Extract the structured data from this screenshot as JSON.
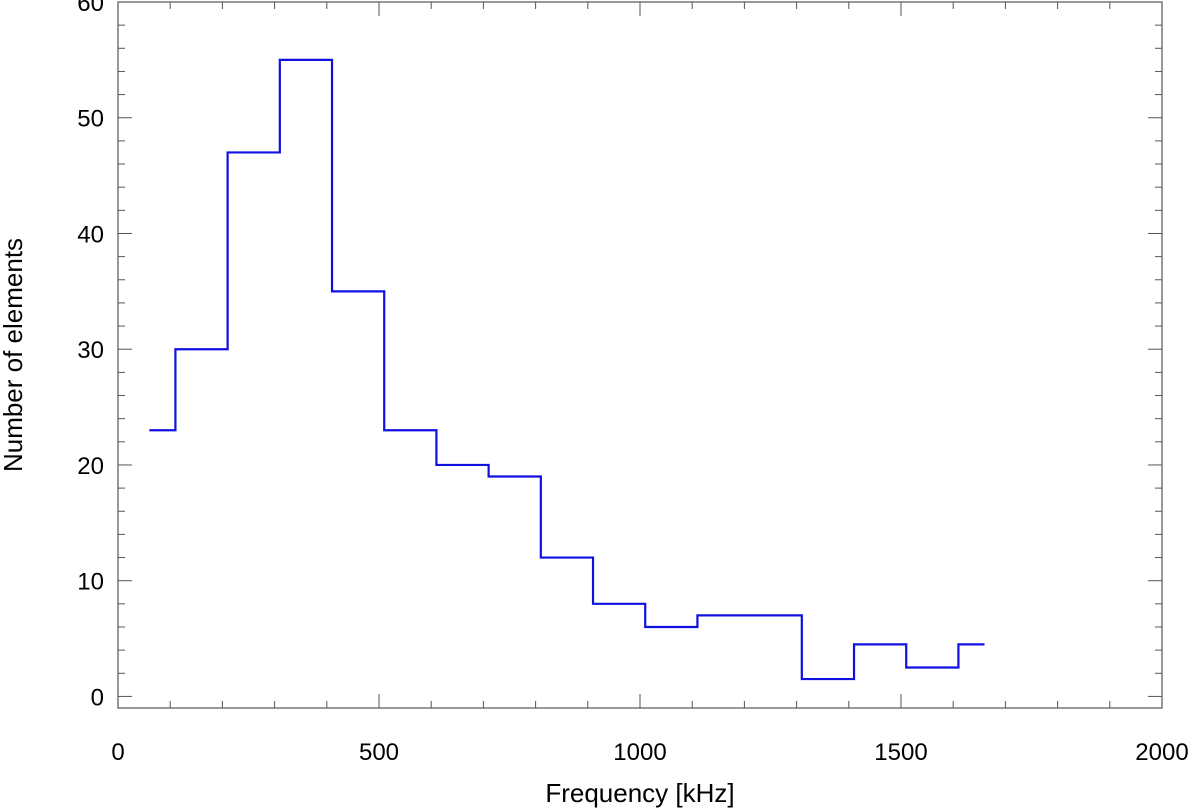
{
  "chart_data": {
    "type": "line",
    "step": "histogram",
    "title": "",
    "xlabel": "Frequency [kHz]",
    "ylabel": "Number of elements",
    "xlim": [
      0,
      2000
    ],
    "ylim": [
      -1,
      60
    ],
    "xticks": [
      0,
      500,
      1000,
      1500,
      2000
    ],
    "yticks": [
      0,
      10,
      20,
      30,
      40,
      50,
      60
    ],
    "x_minor_step": 100,
    "y_minor_step": 2,
    "grid": false,
    "legend": "none",
    "color": "#1010e0",
    "series": [
      {
        "bin_edges": [
          60,
          110,
          210,
          310,
          410,
          510,
          610,
          710,
          810,
          910,
          1010,
          1110,
          1210,
          1310,
          1410,
          1510,
          1610,
          1660
        ],
        "values": [
          23,
          30,
          47,
          55,
          35,
          23,
          20,
          19,
          12,
          8,
          6,
          7,
          7,
          1.5,
          4.5,
          2.5,
          4.5
        ]
      }
    ]
  }
}
